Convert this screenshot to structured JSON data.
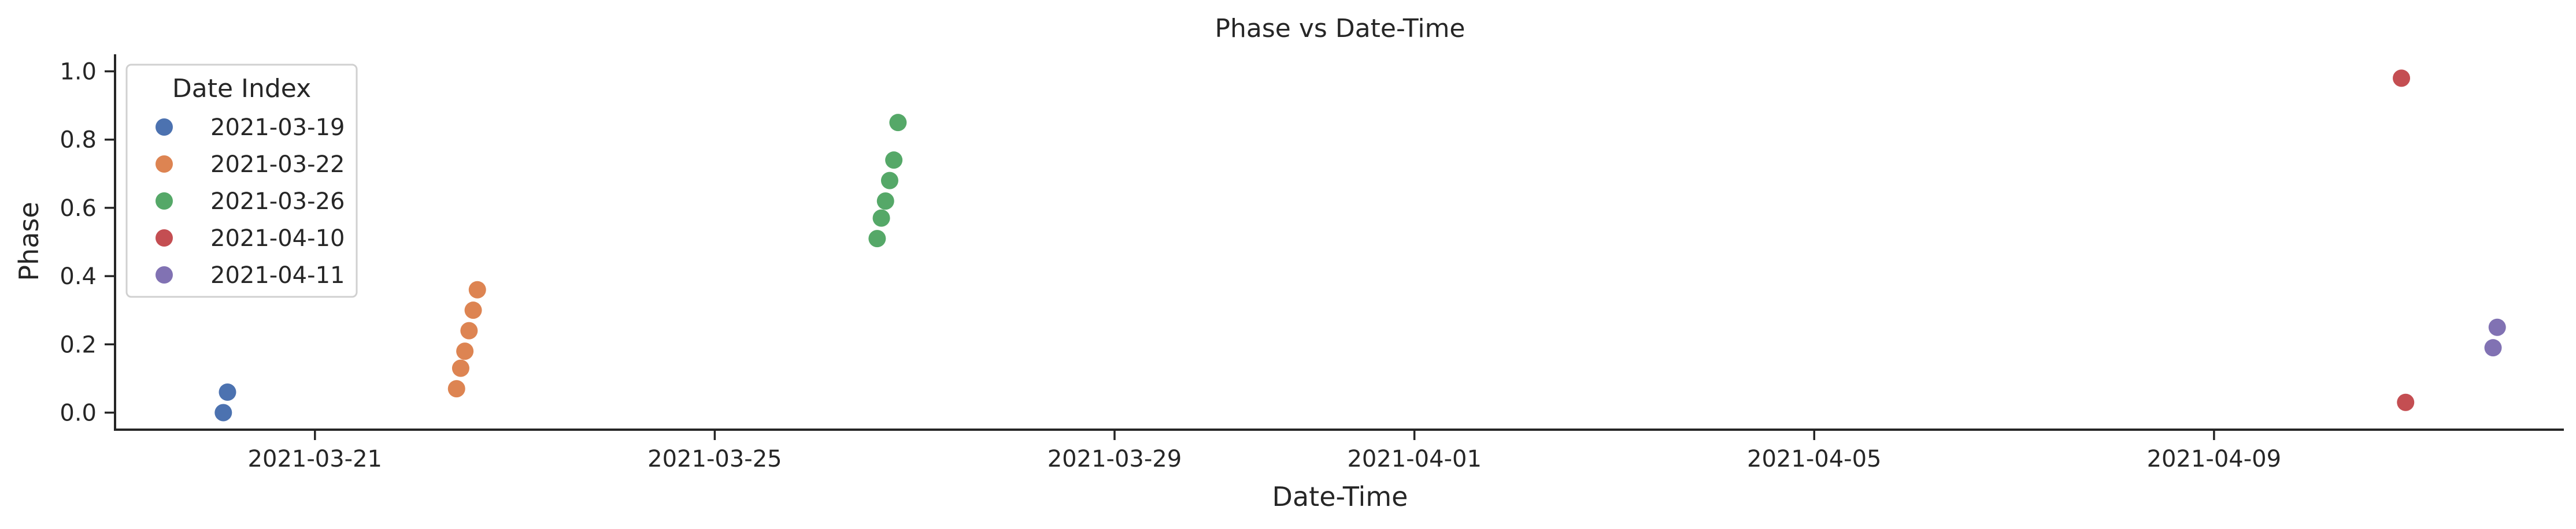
{
  "chart_data": {
    "type": "scatter",
    "title": "Phase vs Date-Time",
    "xlabel": "Date-Time",
    "ylabel": "Phase",
    "xlim": [
      "2021-03-19T00:00",
      "2021-04-12T12:00"
    ],
    "ylim": [
      -0.05,
      1.05
    ],
    "x_ticks": [
      "2021-03-21",
      "2021-03-25",
      "2021-03-29",
      "2021-04-01",
      "2021-04-05",
      "2021-04-09"
    ],
    "y_ticks": [
      "0.0",
      "0.2",
      "0.4",
      "0.6",
      "0.8",
      "1.0"
    ],
    "y_tick_values": [
      0.0,
      0.2,
      0.4,
      0.6,
      0.8,
      1.0
    ],
    "grid": false,
    "legend": {
      "title": "Date Index",
      "placement": "top-left"
    },
    "series": [
      {
        "name": "2021-03-19",
        "color": "#4c72b0",
        "points": [
          {
            "x": "2021-03-20T02:00",
            "y": 0.0
          },
          {
            "x": "2021-03-20T03:00",
            "y": 0.06
          }
        ]
      },
      {
        "name": "2021-03-22",
        "color": "#dd8452",
        "points": [
          {
            "x": "2021-03-22T10:00",
            "y": 0.07
          },
          {
            "x": "2021-03-22T11:00",
            "y": 0.13
          },
          {
            "x": "2021-03-22T12:00",
            "y": 0.18
          },
          {
            "x": "2021-03-22T13:00",
            "y": 0.24
          },
          {
            "x": "2021-03-22T14:00",
            "y": 0.3
          },
          {
            "x": "2021-03-22T15:00",
            "y": 0.36
          }
        ]
      },
      {
        "name": "2021-03-26",
        "color": "#55a868",
        "points": [
          {
            "x": "2021-03-26T15:00",
            "y": 0.51
          },
          {
            "x": "2021-03-26T16:00",
            "y": 0.57
          },
          {
            "x": "2021-03-26T17:00",
            "y": 0.62
          },
          {
            "x": "2021-03-26T18:00",
            "y": 0.68
          },
          {
            "x": "2021-03-26T19:00",
            "y": 0.74
          },
          {
            "x": "2021-03-26T20:00",
            "y": 0.85
          }
        ]
      },
      {
        "name": "2021-04-10",
        "color": "#c44e52",
        "points": [
          {
            "x": "2021-04-10T21:00",
            "y": 0.98
          },
          {
            "x": "2021-04-10T22:00",
            "y": 0.03
          }
        ]
      },
      {
        "name": "2021-04-11",
        "color": "#8172b3",
        "points": [
          {
            "x": "2021-04-11T19:00",
            "y": 0.19
          },
          {
            "x": "2021-04-11T20:00",
            "y": 0.25
          }
        ]
      }
    ]
  }
}
